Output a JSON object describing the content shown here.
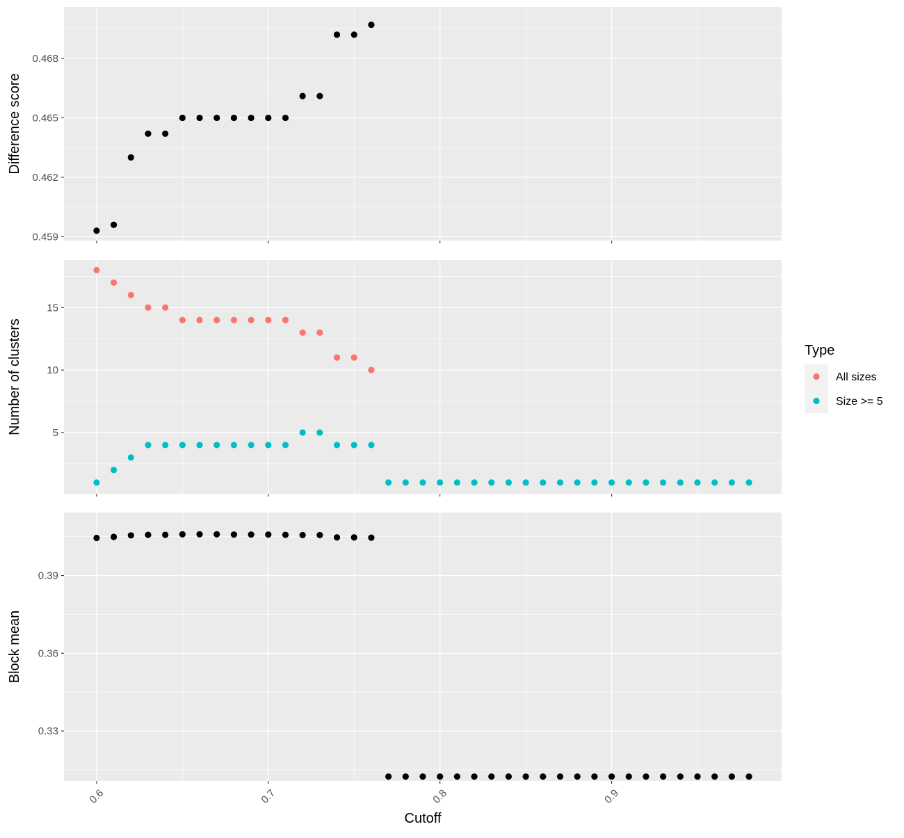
{
  "chart_data": [
    {
      "type": "scatter",
      "ylabel": "Difference score",
      "xlim": [
        0.581,
        0.999
      ],
      "ylim": [
        0.4588,
        0.4706
      ],
      "xticks": [
        0.6,
        0.7,
        0.8,
        0.9
      ],
      "yticks": [
        0.459,
        0.462,
        0.465,
        0.468
      ],
      "ytick_labels": [
        "0.459",
        "0.462",
        "0.465",
        "0.468"
      ],
      "series": [
        {
          "color": "#000000",
          "x": [
            0.6,
            0.61,
            0.62,
            0.63,
            0.64,
            0.65,
            0.66,
            0.67,
            0.68,
            0.69,
            0.7,
            0.71,
            0.72,
            0.73,
            0.74,
            0.75,
            0.76
          ],
          "y": [
            0.4593,
            0.4596,
            0.463,
            0.4642,
            0.4642,
            0.465,
            0.465,
            0.465,
            0.465,
            0.465,
            0.465,
            0.465,
            0.4661,
            0.4661,
            0.4692,
            0.4692,
            0.4697
          ]
        }
      ]
    },
    {
      "type": "scatter",
      "ylabel": "Number of clusters",
      "xlim": [
        0.581,
        0.999
      ],
      "ylim": [
        0.1,
        18.8
      ],
      "xticks": [
        0.6,
        0.7,
        0.8,
        0.9
      ],
      "yticks": [
        5,
        10,
        15
      ],
      "ytick_labels": [
        "5",
        "10",
        "15"
      ],
      "legend": {
        "title": "Type",
        "position": "right"
      },
      "series": [
        {
          "name": "All sizes",
          "color": "#F8766D",
          "x": [
            0.6,
            0.61,
            0.62,
            0.63,
            0.64,
            0.65,
            0.66,
            0.67,
            0.68,
            0.69,
            0.7,
            0.71,
            0.72,
            0.73,
            0.74,
            0.75,
            0.76
          ],
          "y": [
            18,
            17,
            16,
            15,
            15,
            14,
            14,
            14,
            14,
            14,
            14,
            14,
            13,
            13,
            11,
            11,
            10
          ]
        },
        {
          "name": "Size >= 5",
          "color": "#00BFC4",
          "x": [
            0.6,
            0.61,
            0.62,
            0.63,
            0.64,
            0.65,
            0.66,
            0.67,
            0.68,
            0.69,
            0.7,
            0.71,
            0.72,
            0.73,
            0.74,
            0.75,
            0.76,
            0.77,
            0.78,
            0.79,
            0.8,
            0.81,
            0.82,
            0.83,
            0.84,
            0.85,
            0.86,
            0.87,
            0.88,
            0.89,
            0.9,
            0.91,
            0.92,
            0.93,
            0.94,
            0.95,
            0.96,
            0.97,
            0.98
          ],
          "y": [
            1,
            2,
            3,
            4,
            4,
            4,
            4,
            4,
            4,
            4,
            4,
            4,
            5,
            5,
            4,
            4,
            4,
            1,
            1,
            1,
            1,
            1,
            1,
            1,
            1,
            1,
            1,
            1,
            1,
            1,
            1,
            1,
            1,
            1,
            1,
            1,
            1,
            1,
            1
          ]
        }
      ]
    },
    {
      "type": "scatter",
      "ylabel": "Block mean",
      "xlabel": "Cutoff",
      "xlim": [
        0.581,
        0.999
      ],
      "ylim": [
        0.3107,
        0.4143
      ],
      "xticks": [
        0.6,
        0.7,
        0.8,
        0.9
      ],
      "xtick_labels": [
        "0.6",
        "0.7",
        "0.8",
        "0.9"
      ],
      "yticks": [
        0.33,
        0.36,
        0.39
      ],
      "ytick_labels": [
        "0.33",
        "0.36",
        "0.39"
      ],
      "series": [
        {
          "color": "#000000",
          "x": [
            0.6,
            0.61,
            0.62,
            0.63,
            0.64,
            0.65,
            0.66,
            0.67,
            0.68,
            0.69,
            0.7,
            0.71,
            0.72,
            0.73,
            0.74,
            0.75,
            0.76,
            0.77,
            0.78,
            0.79,
            0.8,
            0.81,
            0.82,
            0.83,
            0.84,
            0.85,
            0.86,
            0.87,
            0.88,
            0.89,
            0.9,
            0.91,
            0.92,
            0.93,
            0.94,
            0.95,
            0.96,
            0.97,
            0.98
          ],
          "y": [
            0.4045,
            0.4049,
            0.4055,
            0.4057,
            0.4057,
            0.4059,
            0.4059,
            0.4059,
            0.4058,
            0.4058,
            0.4058,
            0.4057,
            0.4056,
            0.4056,
            0.4047,
            0.4047,
            0.4046,
            0.3124,
            0.3124,
            0.3124,
            0.3124,
            0.3124,
            0.3124,
            0.3124,
            0.3124,
            0.3124,
            0.3124,
            0.3124,
            0.3124,
            0.3124,
            0.3124,
            0.3124,
            0.3124,
            0.3124,
            0.3124,
            0.3124,
            0.3124,
            0.3124,
            0.3124
          ]
        }
      ]
    }
  ]
}
